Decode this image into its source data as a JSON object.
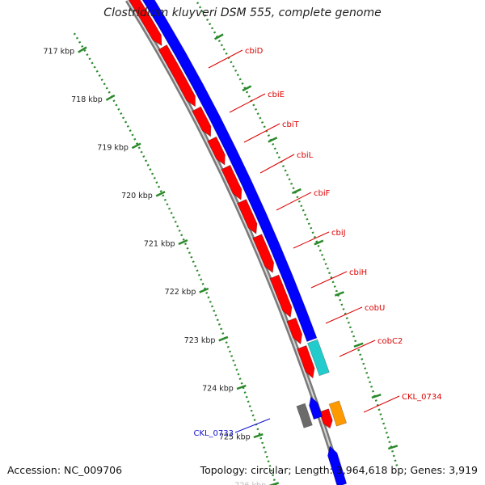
{
  "title": "Clostridium kluyveri DSM 555, complete genome",
  "footer": {
    "accession_label": "Accession:",
    "accession_value": "NC_009706",
    "topology_label": "Topology:",
    "topology_value": "circular",
    "length_label": "Length:",
    "length_value": "3,964,618 bp",
    "genes_label": "Genes:",
    "genes_value": "3,919"
  },
  "colors": {
    "forward_strand": "#0000ff",
    "reverse_strand": "#ff0000",
    "backbone": "#8c8c8c",
    "tick_dots": "#2b8a2b",
    "reverse_label": "#dd0000",
    "forward_label": "#1111cc",
    "cyan_gene": "#22cccc",
    "orange_gene": "#ff9900",
    "gray_gene": "#6b6b6b"
  },
  "ruler": [
    "717 kbp",
    "718 kbp",
    "719 kbp",
    "720 kbp",
    "721 kbp",
    "722 kbp",
    "723 kbp",
    "724 kbp",
    "725 kbp",
    "726 kbp"
  ],
  "genes": [
    {
      "name": "cbiD",
      "strand": "reverse"
    },
    {
      "name": "cbiE",
      "strand": "reverse"
    },
    {
      "name": "cbiT",
      "strand": "reverse"
    },
    {
      "name": "cbiL",
      "strand": "reverse"
    },
    {
      "name": "cbiF",
      "strand": "reverse"
    },
    {
      "name": "cbiJ",
      "strand": "reverse"
    },
    {
      "name": "cbiH",
      "strand": "reverse"
    },
    {
      "name": "cobU",
      "strand": "reverse"
    },
    {
      "name": "cobC2",
      "strand": "reverse"
    },
    {
      "name": "CKL_0734",
      "strand": "reverse"
    },
    {
      "name": "CKL_0733",
      "strand": "forward"
    }
  ]
}
